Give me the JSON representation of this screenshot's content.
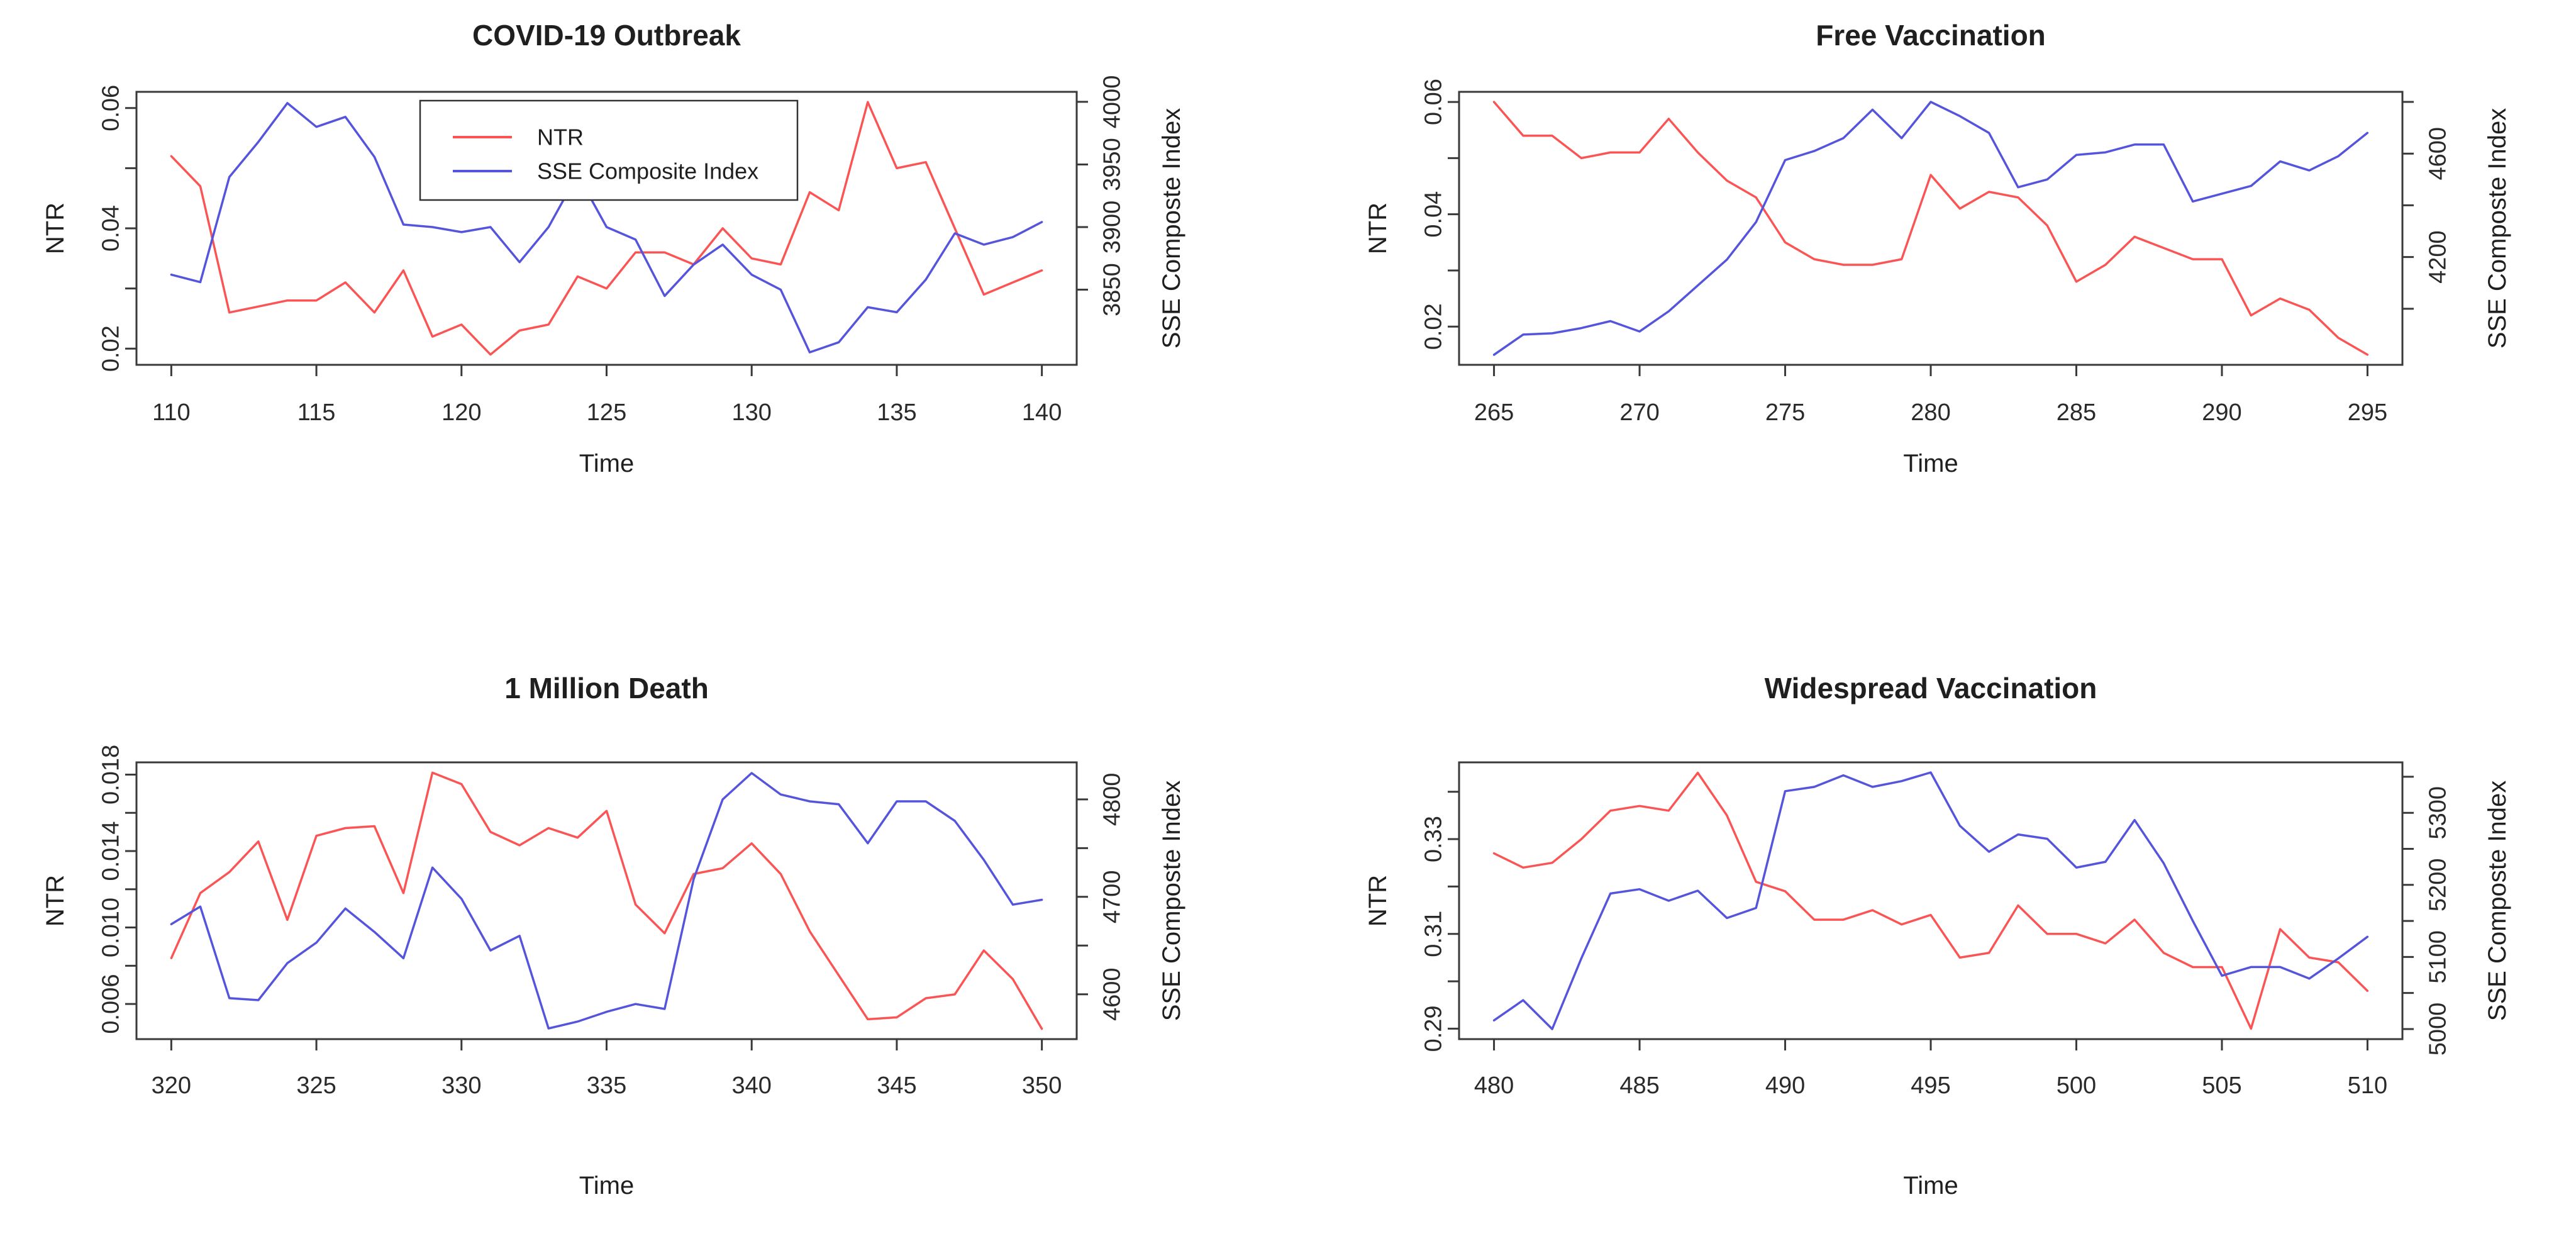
{
  "colors": {
    "ntr_line": "#fb5454",
    "sse_line": "#5454dd",
    "text": "#1f1f1f",
    "tick_text": "#2a2a2a",
    "axis": "#3a3a3a",
    "background": "#ffffff"
  },
  "chart_data": [
    {
      "id": "covid-19-outbreak",
      "type": "line",
      "title": "COVID-19 Outbreak",
      "xlabel": "Time",
      "ylabel_left": "NTR",
      "ylabel_right": "SSE Composte Index",
      "x_start": 110,
      "xlim": [
        108.8,
        141.2
      ],
      "x_ticks": [
        110,
        115,
        120,
        125,
        130,
        135,
        140
      ],
      "left_axis": {
        "lim": [
          0.0173,
          0.0627
        ],
        "ticks": [
          0.02,
          0.03,
          0.04,
          0.05,
          0.06
        ],
        "tick_labels": [
          "0.02",
          "",
          "0.04",
          "",
          "0.06"
        ]
      },
      "right_axis": {
        "lim": [
          3790,
          4008
        ],
        "ticks": [
          3850,
          3900,
          3950,
          4000
        ],
        "tick_labels": [
          "3850",
          "3900",
          "3950",
          "4000"
        ]
      },
      "series": [
        {
          "name": "NTR",
          "axis": "left",
          "color": "ntr_line",
          "values": [
            0.052,
            0.047,
            0.026,
            0.027,
            0.028,
            0.028,
            0.031,
            0.026,
            0.033,
            0.022,
            0.024,
            0.019,
            0.023,
            0.024,
            0.032,
            0.03,
            0.036,
            0.036,
            0.034,
            0.04,
            0.035,
            0.034,
            0.046,
            0.043,
            0.061,
            0.05,
            0.051,
            0.04,
            0.029,
            0.031,
            0.033
          ]
        },
        {
          "name": "SSE Composite Index",
          "axis": "right",
          "color": "sse_line",
          "values": [
            3862,
            3856,
            3940,
            3968,
            3999,
            3980,
            3988,
            3956,
            3902,
            3900,
            3896,
            3900,
            3872,
            3900,
            3942,
            3900,
            3890,
            3845,
            3870,
            3886,
            3862,
            3850,
            3800,
            3808,
            3836,
            3832,
            3858,
            3895,
            3886,
            3892,
            3904
          ]
        }
      ],
      "legend": {
        "show": true,
        "entries": [
          "NTR",
          "SSE Composite Index"
        ]
      }
    },
    {
      "id": "free-vaccination",
      "type": "line",
      "title": "Free Vaccination",
      "xlabel": "Time",
      "ylabel_left": "NTR",
      "ylabel_right": "SSE Composte Index",
      "x_start": 265,
      "xlim": [
        263.8,
        296.2
      ],
      "x_ticks": [
        265,
        270,
        275,
        280,
        285,
        290,
        295
      ],
      "left_axis": {
        "lim": [
          0.0132,
          0.0618
        ],
        "ticks": [
          0.02,
          0.03,
          0.04,
          0.05,
          0.06
        ],
        "tick_labels": [
          "0.02",
          "",
          "0.04",
          "",
          "0.06"
        ]
      },
      "right_axis": {
        "lim": [
          3783,
          4839
        ],
        "ticks": [
          4000,
          4200,
          4400,
          4600,
          4800
        ],
        "tick_labels": [
          "",
          "4200",
          "",
          "4600",
          ""
        ]
      },
      "series": [
        {
          "name": "NTR",
          "axis": "left",
          "color": "ntr_line",
          "values": [
            0.06,
            0.054,
            0.054,
            0.05,
            0.051,
            0.051,
            0.057,
            0.051,
            0.046,
            0.043,
            0.035,
            0.032,
            0.031,
            0.031,
            0.032,
            0.047,
            0.041,
            0.044,
            0.043,
            0.038,
            0.028,
            0.031,
            0.036,
            0.034,
            0.032,
            0.032,
            0.022,
            0.025,
            0.023,
            0.018,
            0.015
          ]
        },
        {
          "name": "SSE Composite Index",
          "axis": "right",
          "color": "sse_line",
          "values": [
            3822,
            3900,
            3905,
            3925,
            3952,
            3912,
            3990,
            4090,
            4190,
            4335,
            4575,
            4610,
            4660,
            4770,
            4660,
            4800,
            4745,
            4680,
            4470,
            4500,
            4595,
            4605,
            4635,
            4635,
            4415,
            4445,
            4475,
            4570,
            4535,
            4590,
            4680
          ]
        }
      ],
      "legend": {
        "show": false,
        "entries": []
      }
    },
    {
      "id": "one-million-death",
      "type": "line",
      "title": "1 Million Death",
      "xlabel": "Time",
      "ylabel_left": "NTR",
      "ylabel_right": "SSE Composte Index",
      "x_start": 320,
      "xlim": [
        318.8,
        351.2
      ],
      "x_ticks": [
        320,
        325,
        330,
        335,
        340,
        345,
        350
      ],
      "left_axis": {
        "lim": [
          0.00416,
          0.01864
        ],
        "ticks": [
          0.006,
          0.008,
          0.01,
          0.012,
          0.014,
          0.016,
          0.018
        ],
        "tick_labels": [
          "0.006",
          "",
          "0.010",
          "",
          "0.014",
          "",
          "0.018"
        ]
      },
      "right_axis": {
        "lim": [
          4554,
          4838
        ],
        "ticks": [
          4600,
          4650,
          4700,
          4750,
          4800
        ],
        "tick_labels": [
          "4600",
          "",
          "4700",
          "",
          "4800"
        ]
      },
      "series": [
        {
          "name": "NTR",
          "axis": "left",
          "color": "ntr_line",
          "values": [
            0.0084,
            0.0118,
            0.0129,
            0.0145,
            0.0104,
            0.0148,
            0.0152,
            0.0153,
            0.0118,
            0.0181,
            0.0175,
            0.015,
            0.0143,
            0.0152,
            0.0147,
            0.0161,
            0.0112,
            0.0097,
            0.0128,
            0.0131,
            0.0144,
            0.0128,
            0.0098,
            0.0075,
            0.0052,
            0.0053,
            0.0063,
            0.0065,
            0.0088,
            0.0073,
            0.0047
          ]
        },
        {
          "name": "SSE Composite Index",
          "axis": "right",
          "color": "sse_line",
          "values": [
            4672,
            4690,
            4596,
            4594,
            4632,
            4653,
            4688,
            4664,
            4637,
            4730,
            4698,
            4645,
            4660,
            4565,
            4572,
            4582,
            4590,
            4585,
            4718,
            4800,
            4827,
            4805,
            4798,
            4795,
            4755,
            4798,
            4798,
            4778,
            4738,
            4692,
            4697
          ]
        }
      ],
      "legend": {
        "show": false,
        "entries": []
      }
    },
    {
      "id": "widespread-vaccination",
      "type": "line",
      "title": "Widespread Vaccination",
      "xlabel": "Time",
      "ylabel_left": "NTR",
      "ylabel_right": "SSE Composte Index",
      "x_start": 480,
      "xlim": [
        478.8,
        511.2
      ],
      "x_ticks": [
        480,
        485,
        490,
        495,
        500,
        505,
        510
      ],
      "left_axis": {
        "lim": [
          0.2878,
          0.3462
        ],
        "ticks": [
          0.29,
          0.3,
          0.31,
          0.32,
          0.33,
          0.34
        ],
        "tick_labels": [
          "0.29",
          "",
          "0.31",
          "",
          "0.33",
          ""
        ]
      },
      "right_axis": {
        "lim": [
          4986,
          5370
        ],
        "ticks": [
          5000,
          5050,
          5100,
          5150,
          5200,
          5250,
          5300,
          5350
        ],
        "tick_labels": [
          "5000",
          "",
          "5100",
          "",
          "5200",
          "",
          "5300",
          ""
        ]
      },
      "series": [
        {
          "name": "NTR",
          "axis": "left",
          "color": "ntr_line",
          "values": [
            0.327,
            0.324,
            0.325,
            0.33,
            0.336,
            0.337,
            0.336,
            0.344,
            0.335,
            0.321,
            0.319,
            0.313,
            0.313,
            0.315,
            0.312,
            0.314,
            0.305,
            0.306,
            0.316,
            0.31,
            0.31,
            0.308,
            0.313,
            0.306,
            0.303,
            0.303,
            0.29,
            0.311,
            0.305,
            0.304,
            0.298
          ]
        },
        {
          "name": "SSE Composite Index",
          "axis": "right",
          "color": "sse_line",
          "values": [
            5012,
            5040,
            5000,
            5098,
            5188,
            5194,
            5178,
            5192,
            5154,
            5168,
            5330,
            5336,
            5352,
            5336,
            5344,
            5356,
            5282,
            5246,
            5270,
            5264,
            5224,
            5232,
            5290,
            5230,
            5150,
            5074,
            5086,
            5086,
            5070,
            5098,
            5128
          ]
        }
      ],
      "legend": {
        "show": false,
        "entries": []
      }
    }
  ]
}
